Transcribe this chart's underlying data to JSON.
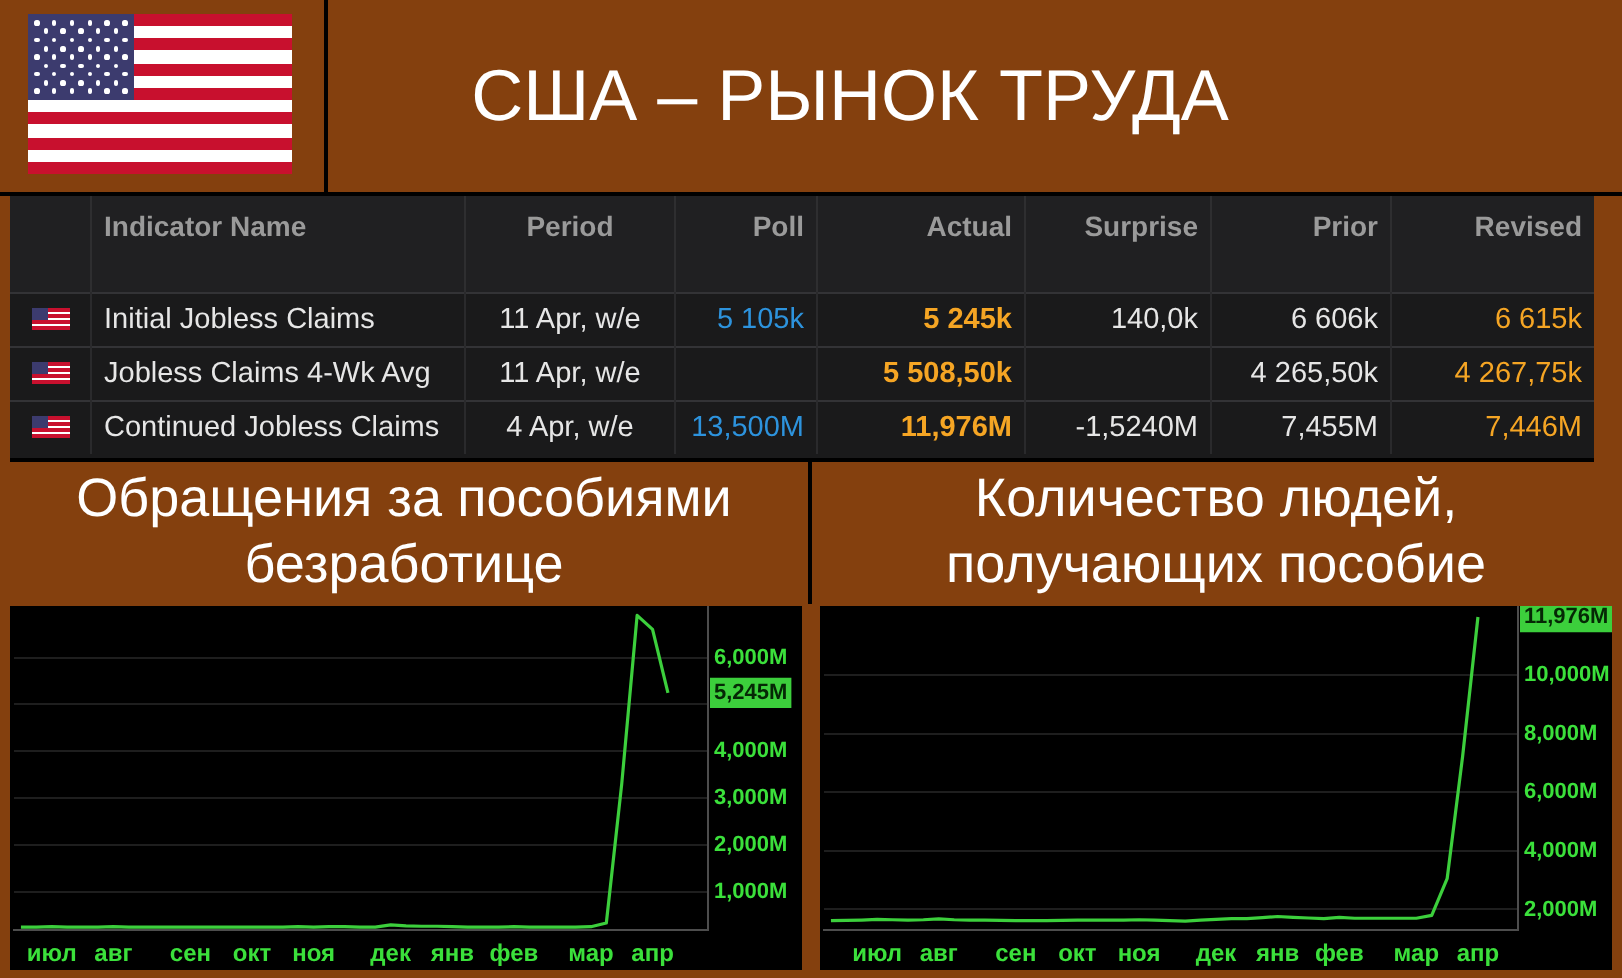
{
  "chart_data": [
    {
      "type": "other",
      "title": "США – РЫНОК ТРУДА",
      "categories": [
        "Indicator Name",
        "Period",
        "Poll",
        "Actual",
        "Surprise",
        "Prior",
        "Revised"
      ],
      "cell_labels": [
        [
          "Initial Jobless Claims",
          "11 Apr, w/e",
          "5 105k",
          "5 245k",
          "140,0k",
          "6 606k",
          "6 615k"
        ],
        [
          "Jobless Claims 4-Wk Avg",
          "11 Apr, w/e",
          null,
          "5 508,50k",
          null,
          "4 265,50k",
          "4 267,75k"
        ],
        [
          "Continued Jobless Claims",
          "4 Apr, w/e",
          "13,500M",
          "11,976M",
          "-1,5240M",
          "7,455M",
          "7,446M"
        ]
      ]
    },
    {
      "type": "line",
      "title": "Обращения за пособиями безработице",
      "grid": "y",
      "ylim": [
        180,
        7100
      ],
      "yticks": [
        {
          "value": 1000,
          "label": "1,000M"
        },
        {
          "value": 2000,
          "label": "2,000M"
        },
        {
          "value": 3000,
          "label": "3,000M"
        },
        {
          "value": 4000,
          "label": "4,000M"
        },
        {
          "value": 5000,
          "label": null
        },
        {
          "value": 5245,
          "label": "5,245M"
        },
        {
          "value": 6000,
          "label": "6,000M"
        }
      ],
      "categories": [
        null,
        null,
        "июл",
        null,
        null,
        null,
        "авг",
        null,
        null,
        null,
        null,
        "сен",
        null,
        null,
        null,
        "окт",
        null,
        null,
        null,
        "ноя",
        null,
        null,
        null,
        null,
        "дек",
        null,
        null,
        null,
        "янв",
        null,
        null,
        null,
        "фев",
        null,
        null,
        null,
        null,
        "мар",
        null,
        null,
        null,
        "апр",
        null
      ],
      "series": [
        {
          "color": "#3ccf3c",
          "values": [
            240,
            240,
            250,
            240,
            240,
            240,
            250,
            240,
            240,
            240,
            240,
            240,
            240,
            240,
            240,
            240,
            240,
            240,
            250,
            240,
            250,
            250,
            240,
            240,
            290,
            270,
            260,
            260,
            250,
            240,
            240,
            240,
            250,
            240,
            240,
            240,
            240,
            250,
            330,
            3300,
            6900,
            6600,
            5245
          ]
        }
      ]
    },
    {
      "type": "line",
      "title": "Количество людей, получающих пособие",
      "grid": "y",
      "ylim": [
        1300,
        12350
      ],
      "yticks": [
        {
          "value": 2000,
          "label": "2,000M"
        },
        {
          "value": 4000,
          "label": "4,000M"
        },
        {
          "value": 6000,
          "label": "6,000M"
        },
        {
          "value": 8000,
          "label": "8,000M"
        },
        {
          "value": 10000,
          "label": "10,000M"
        },
        {
          "value": 11976,
          "label": "11,976M"
        }
      ],
      "categories": [
        null,
        null,
        null,
        "июл",
        null,
        null,
        null,
        "авг",
        null,
        null,
        null,
        null,
        "сен",
        null,
        null,
        null,
        "окт",
        null,
        null,
        null,
        "ноя",
        null,
        null,
        null,
        null,
        "дек",
        null,
        null,
        null,
        "янв",
        null,
        null,
        null,
        "фев",
        null,
        null,
        null,
        null,
        "мар",
        null,
        null,
        null,
        "апр"
      ],
      "series": [
        {
          "color": "#3ccf3c",
          "values": [
            1620,
            1630,
            1640,
            1660,
            1650,
            1640,
            1650,
            1680,
            1650,
            1640,
            1640,
            1630,
            1620,
            1620,
            1620,
            1630,
            1640,
            1640,
            1640,
            1640,
            1650,
            1640,
            1620,
            1600,
            1640,
            1660,
            1690,
            1690,
            1720,
            1760,
            1730,
            1710,
            1690,
            1730,
            1700,
            1700,
            1700,
            1700,
            1700,
            1800,
            3050,
            7200,
            11976
          ]
        }
      ]
    }
  ]
}
